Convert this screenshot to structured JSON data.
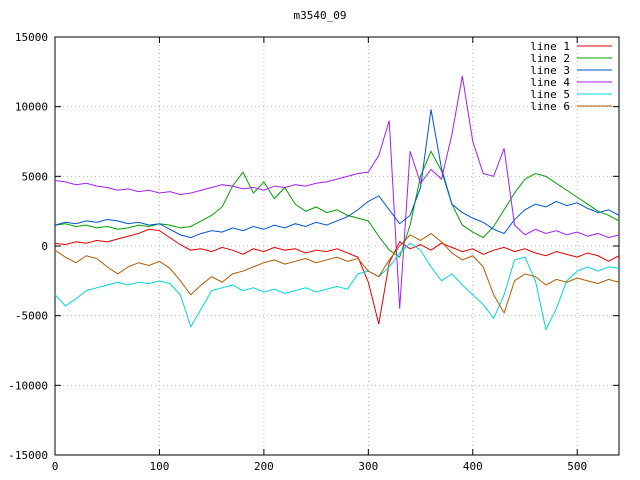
{
  "chart_data": {
    "type": "line",
    "title": "m3540_09",
    "xlabel": "",
    "ylabel": "",
    "xlim": [
      0,
      540
    ],
    "ylim": [
      -15000,
      15000
    ],
    "xticks": [
      0,
      100,
      200,
      300,
      400,
      500
    ],
    "yticks": [
      -15000,
      -10000,
      -5000,
      0,
      5000,
      10000,
      15000
    ],
    "grid": true,
    "grid_style": "dotted",
    "legend_position": "top-right",
    "border_color": "#000000",
    "grid_color": "#b8b8b8",
    "x": [
      0,
      10,
      20,
      30,
      40,
      50,
      60,
      70,
      80,
      90,
      100,
      110,
      120,
      130,
      140,
      150,
      160,
      170,
      180,
      190,
      200,
      210,
      220,
      230,
      240,
      250,
      260,
      270,
      280,
      290,
      300,
      310,
      320,
      330,
      340,
      350,
      360,
      370,
      380,
      390,
      400,
      410,
      420,
      430,
      440,
      450,
      460,
      470,
      480,
      490,
      500,
      510,
      520,
      530,
      540
    ],
    "series": [
      {
        "name": "line 1",
        "color": "#e00000",
        "values": [
          200,
          100,
          300,
          200,
          400,
          300,
          500,
          700,
          900,
          1200,
          1100,
          600,
          100,
          -300,
          -200,
          -400,
          -100,
          -300,
          -600,
          -200,
          -400,
          -100,
          -300,
          -200,
          -500,
          -300,
          -400,
          -200,
          -500,
          -800,
          -2600,
          -5600,
          -1200,
          300,
          -200,
          100,
          -300,
          200,
          -100,
          -400,
          -200,
          -600,
          -300,
          -100,
          -400,
          -200,
          -500,
          -700,
          -400,
          -600,
          -800,
          -500,
          -700,
          -1100,
          -700
        ]
      },
      {
        "name": "line 2",
        "color": "#00a000",
        "values": [
          1500,
          1600,
          1400,
          1500,
          1300,
          1400,
          1200,
          1300,
          1500,
          1400,
          1600,
          1500,
          1300,
          1400,
          1800,
          2200,
          2800,
          4300,
          5300,
          3800,
          4600,
          3400,
          4200,
          3000,
          2500,
          2800,
          2400,
          2600,
          2200,
          2000,
          1800,
          700,
          -300,
          -800,
          1500,
          5000,
          6800,
          5400,
          3000,
          1500,
          1000,
          600,
          1400,
          2600,
          3800,
          4800,
          5200,
          5000,
          4500,
          4000,
          3500,
          3000,
          2500,
          2200,
          1800
        ]
      },
      {
        "name": "line 3",
        "color": "#0055cc",
        "values": [
          1500,
          1700,
          1600,
          1800,
          1700,
          1900,
          1800,
          1600,
          1700,
          1500,
          1600,
          1200,
          800,
          600,
          900,
          1100,
          1000,
          1300,
          1100,
          1400,
          1200,
          1500,
          1300,
          1600,
          1400,
          1700,
          1500,
          1800,
          2100,
          2600,
          3200,
          3600,
          2600,
          1600,
          2200,
          4200,
          9800,
          5600,
          3000,
          2400,
          2000,
          1700,
          1200,
          900,
          1900,
          2600,
          3000,
          2800,
          3200,
          2900,
          3100,
          2700,
          2400,
          2600,
          2200
        ]
      },
      {
        "name": "line 4",
        "color": "#a020f0",
        "values": [
          4700,
          4600,
          4400,
          4500,
          4300,
          4200,
          4000,
          4100,
          3900,
          4000,
          3800,
          3900,
          3700,
          3800,
          4000,
          4200,
          4400,
          4300,
          4100,
          4200,
          4000,
          4300,
          4200,
          4400,
          4300,
          4500,
          4600,
          4800,
          5000,
          5200,
          5300,
          6500,
          9000,
          -4500,
          6800,
          4500,
          5500,
          4800,
          8000,
          12200,
          7500,
          5200,
          5000,
          7000,
          1500,
          800,
          1200,
          900,
          1100,
          800,
          1000,
          700,
          900,
          600,
          800
        ]
      },
      {
        "name": "line 5",
        "color": "#00d8d8",
        "values": [
          -3500,
          -4300,
          -3800,
          -3200,
          -3000,
          -2800,
          -2600,
          -2800,
          -2600,
          -2700,
          -2500,
          -2700,
          -3500,
          -5800,
          -4500,
          -3200,
          -3000,
          -2800,
          -3200,
          -3000,
          -3300,
          -3100,
          -3400,
          -3200,
          -3000,
          -3300,
          -3100,
          -2900,
          -3100,
          -2000,
          -1800,
          -2200,
          -1500,
          -500,
          200,
          -300,
          -1500,
          -2500,
          -2000,
          -2800,
          -3500,
          -4200,
          -5200,
          -3500,
          -1000,
          -800,
          -2500,
          -6000,
          -4500,
          -2500,
          -1800,
          -1500,
          -1800,
          -1500,
          -1600
        ]
      },
      {
        "name": "line 6",
        "color": "#b05a00",
        "values": [
          -300,
          -800,
          -1200,
          -700,
          -900,
          -1500,
          -2000,
          -1500,
          -1200,
          -1400,
          -1100,
          -1600,
          -2500,
          -3500,
          -2800,
          -2200,
          -2600,
          -2000,
          -1800,
          -1500,
          -1200,
          -1000,
          -1300,
          -1100,
          -900,
          -1200,
          -1000,
          -800,
          -1100,
          -900,
          -1800,
          -2200,
          -1000,
          0,
          800,
          400,
          900,
          300,
          -500,
          -1000,
          -700,
          -1500,
          -3500,
          -4800,
          -2500,
          -2000,
          -2200,
          -2800,
          -2400,
          -2600,
          -2300,
          -2500,
          -2700,
          -2400,
          -2600
        ]
      }
    ]
  }
}
